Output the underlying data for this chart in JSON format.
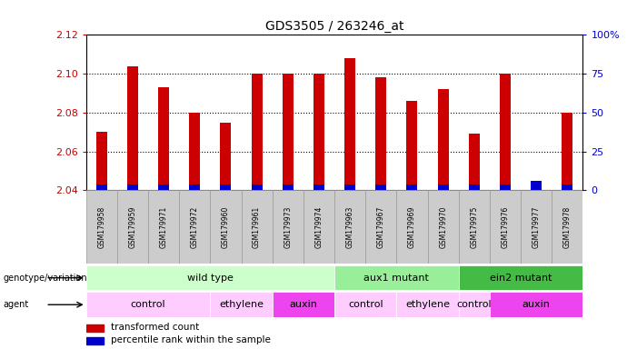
{
  "title": "GDS3505 / 263246_at",
  "samples": [
    "GSM179958",
    "GSM179959",
    "GSM179971",
    "GSM179972",
    "GSM179960",
    "GSM179961",
    "GSM179973",
    "GSM179974",
    "GSM179963",
    "GSM179967",
    "GSM179969",
    "GSM179970",
    "GSM179975",
    "GSM179976",
    "GSM179977",
    "GSM179978"
  ],
  "red_values": [
    2.07,
    2.104,
    2.093,
    2.08,
    2.075,
    2.1,
    2.1,
    2.1,
    2.108,
    2.098,
    2.086,
    2.092,
    2.069,
    2.1,
    2.044,
    2.08
  ],
  "blue_values": [
    0.003,
    0.003,
    0.003,
    0.003,
    0.003,
    0.003,
    0.003,
    0.003,
    0.003,
    0.003,
    0.003,
    0.003,
    0.003,
    0.003,
    0.005,
    0.003
  ],
  "ymin": 2.04,
  "ymax": 2.12,
  "y_ticks": [
    2.04,
    2.06,
    2.08,
    2.1,
    2.12
  ],
  "y2_ticks": [
    0,
    25,
    50,
    75,
    100
  ],
  "genotype_groups": [
    {
      "label": "wild type",
      "start": 0,
      "end": 7,
      "color": "#ccffcc"
    },
    {
      "label": "aux1 mutant",
      "start": 8,
      "end": 11,
      "color": "#99ee99"
    },
    {
      "label": "ein2 mutant",
      "start": 12,
      "end": 15,
      "color": "#44bb44"
    }
  ],
  "agent_groups": [
    {
      "label": "control",
      "start": 0,
      "end": 3,
      "color": "#ffccff"
    },
    {
      "label": "ethylene",
      "start": 4,
      "end": 5,
      "color": "#ffccff"
    },
    {
      "label": "auxin",
      "start": 6,
      "end": 7,
      "color": "#ee44ee"
    },
    {
      "label": "control",
      "start": 8,
      "end": 9,
      "color": "#ffccff"
    },
    {
      "label": "ethylene",
      "start": 10,
      "end": 11,
      "color": "#ffccff"
    },
    {
      "label": "control",
      "start": 12,
      "end": 12,
      "color": "#ffccff"
    },
    {
      "label": "auxin",
      "start": 13,
      "end": 15,
      "color": "#ee44ee"
    }
  ],
  "red_color": "#cc0000",
  "blue_color": "#0000cc",
  "bar_width": 0.35,
  "background_color": "#ffffff",
  "label_color_left": "#cc0000",
  "label_color_right": "#0000cc",
  "sample_box_color": "#cccccc",
  "sample_box_edge": "#999999"
}
